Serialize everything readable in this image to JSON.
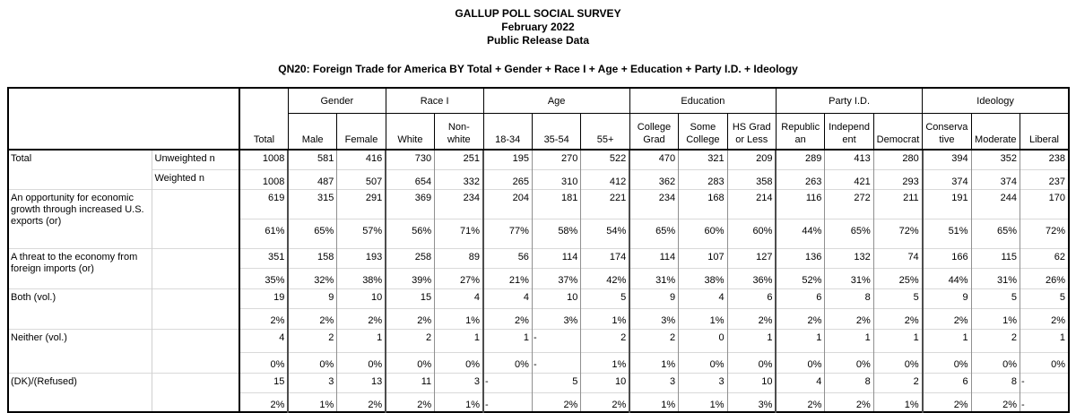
{
  "header": {
    "title": "GALLUP POLL SOCIAL SURVEY",
    "date": "February 2022",
    "release": "Public Release Data",
    "question": "QN20: Foreign Trade for America BY Total + Gender + Race I + Age + Education + Party I.D. + Ideology"
  },
  "table": {
    "total_column_label": "Total",
    "column_groups": [
      {
        "label": "Gender",
        "span": 2
      },
      {
        "label": "Race I",
        "span": 2
      },
      {
        "label": "Age",
        "span": 3
      },
      {
        "label": "Education",
        "span": 3
      },
      {
        "label": "Party I.D.",
        "span": 3
      },
      {
        "label": "Ideology",
        "span": 3
      }
    ],
    "columns": [
      "Male",
      "Female",
      "White",
      "Non-\nwhite",
      "18-34",
      "35-54",
      "55+",
      "College\nGrad",
      "Some\nCollege",
      "HS Grad\nor Less",
      "Republic\nan",
      "Independ\nent",
      "Democrat",
      "Conserva\ntive",
      "Moderate",
      "Liberal"
    ],
    "blocks": [
      {
        "label": "Total",
        "rows": [
          {
            "sub": "Unweighted n",
            "cells": [
              "1008",
              "581",
              "416",
              "730",
              "251",
              "195",
              "270",
              "522",
              "470",
              "321",
              "209",
              "289",
              "413",
              "280",
              "394",
              "352",
              "238"
            ]
          },
          {
            "sub": "Weighted n",
            "cells": [
              "1008",
              "487",
              "507",
              "654",
              "332",
              "265",
              "310",
              "412",
              "362",
              "283",
              "358",
              "263",
              "421",
              "293",
              "374",
              "374",
              "237"
            ]
          }
        ]
      },
      {
        "label": "An opportunity for economic\ngrowth through increased U.S.\nexports (or)",
        "rows": [
          {
            "cells": [
              "619",
              "315",
              "291",
              "369",
              "234",
              "204",
              "181",
              "221",
              "234",
              "168",
              "214",
              "116",
              "272",
              "211",
              "191",
              "244",
              "170"
            ]
          },
          {
            "cells": [
              "61%",
              "65%",
              "57%",
              "56%",
              "71%",
              "77%",
              "58%",
              "54%",
              "65%",
              "60%",
              "60%",
              "44%",
              "65%",
              "72%",
              "51%",
              "65%",
              "72%"
            ]
          }
        ]
      },
      {
        "label": "A threat to the economy from\nforeign imports (or)",
        "rows": [
          {
            "cells": [
              "351",
              "158",
              "193",
              "258",
              "89",
              "56",
              "114",
              "174",
              "114",
              "107",
              "127",
              "136",
              "132",
              "74",
              "166",
              "115",
              "62"
            ]
          },
          {
            "cells": [
              "35%",
              "32%",
              "38%",
              "39%",
              "27%",
              "21%",
              "37%",
              "42%",
              "31%",
              "38%",
              "36%",
              "52%",
              "31%",
              "25%",
              "44%",
              "31%",
              "26%"
            ]
          }
        ]
      },
      {
        "label": "Both (vol.)",
        "rows": [
          {
            "cells": [
              "19",
              "9",
              "10",
              "15",
              "4",
              "4",
              "10",
              "5",
              "9",
              "4",
              "6",
              "6",
              "8",
              "5",
              "9",
              "5",
              "5"
            ]
          },
          {
            "cells": [
              "2%",
              "2%",
              "2%",
              "2%",
              "1%",
              "2%",
              "3%",
              "1%",
              "3%",
              "1%",
              "2%",
              "2%",
              "2%",
              "2%",
              "2%",
              "1%",
              "2%"
            ]
          }
        ]
      },
      {
        "label": "Neither (vol.)",
        "rows": [
          {
            "cells": [
              "4",
              "2",
              "1",
              "2",
              "1",
              "1",
              "-",
              "2",
              "2",
              "0",
              "1",
              "1",
              "1",
              "1",
              "1",
              "2",
              "1"
            ]
          },
          {
            "cells": [
              "0%",
              "0%",
              "0%",
              "0%",
              "0%",
              "0%",
              "-",
              "1%",
              "1%",
              "0%",
              "0%",
              "0%",
              "0%",
              "0%",
              "0%",
              "0%",
              "0%"
            ]
          }
        ]
      },
      {
        "label": "(DK)/(Refused)",
        "rows": [
          {
            "cells": [
              "15",
              "3",
              "13",
              "11",
              "3",
              "-",
              "5",
              "10",
              "3",
              "3",
              "10",
              "4",
              "8",
              "2",
              "6",
              "8",
              "-"
            ]
          },
          {
            "cells": [
              "2%",
              "1%",
              "2%",
              "2%",
              "1%",
              "-",
              "2%",
              "2%",
              "1%",
              "1%",
              "3%",
              "2%",
              "2%",
              "1%",
              "2%",
              "2%",
              "-"
            ]
          }
        ]
      }
    ]
  }
}
